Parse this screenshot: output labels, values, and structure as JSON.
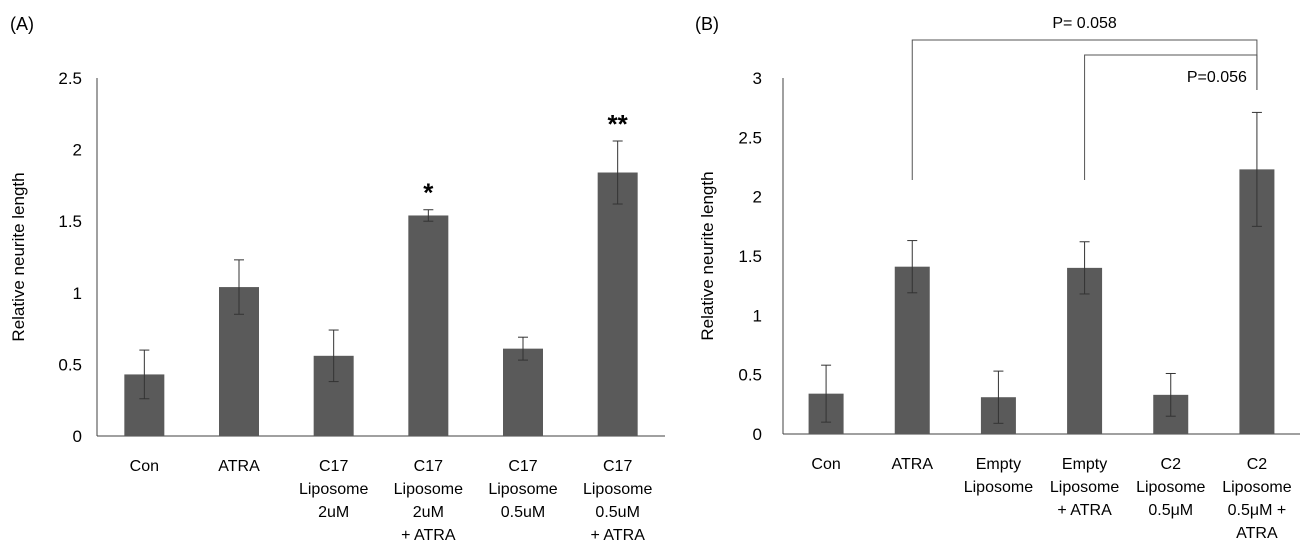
{
  "chart_data": [
    {
      "type": "bar",
      "panel_label": "(A)",
      "ylabel": "Relative neurite length",
      "ylim": [
        0,
        2.5
      ],
      "yticks": [
        "0",
        "0.5",
        "1",
        "1.5",
        "2",
        "2.5"
      ],
      "bar_color": "#5a5a5a",
      "categories": [
        [
          "Con"
        ],
        [
          "ATRA"
        ],
        [
          "C17",
          "Liposome",
          "2uM"
        ],
        [
          "C17",
          "Liposome",
          "2uM",
          "+ ATRA"
        ],
        [
          "C17",
          "Liposome",
          "0.5uM"
        ],
        [
          "C17",
          "Liposome",
          "0.5uM",
          "+ ATRA"
        ]
      ],
      "values": [
        0.43,
        1.04,
        0.56,
        1.54,
        0.61,
        1.84
      ],
      "errors": [
        0.17,
        0.19,
        0.18,
        0.04,
        0.08,
        0.22
      ],
      "annotations": [
        "",
        "",
        "",
        "*",
        "",
        "**"
      ]
    },
    {
      "type": "bar",
      "panel_label": "(B)",
      "ylabel": "Relative neurite length",
      "ylim": [
        0,
        3
      ],
      "yticks": [
        "0",
        "0.5",
        "1",
        "1.5",
        "2",
        "2.5",
        "3"
      ],
      "bar_color": "#5a5a5a",
      "categories": [
        [
          "Con"
        ],
        [
          "ATRA"
        ],
        [
          "Empty",
          "Liposome"
        ],
        [
          "Empty",
          "Liposome",
          "+ ATRA"
        ],
        [
          "C2",
          "Liposome",
          "0.5μM"
        ],
        [
          "C2",
          "Liposome",
          "0.5μM +",
          "ATRA"
        ]
      ],
      "values": [
        0.34,
        1.41,
        0.31,
        1.4,
        0.33,
        2.23
      ],
      "errors": [
        0.24,
        0.22,
        0.22,
        0.22,
        0.18,
        0.48
      ],
      "comparisons": [
        {
          "from": 1,
          "to": 5,
          "label": "P= 0.058"
        },
        {
          "from": 3,
          "to": 5,
          "label": "P=0.056"
        }
      ]
    }
  ]
}
